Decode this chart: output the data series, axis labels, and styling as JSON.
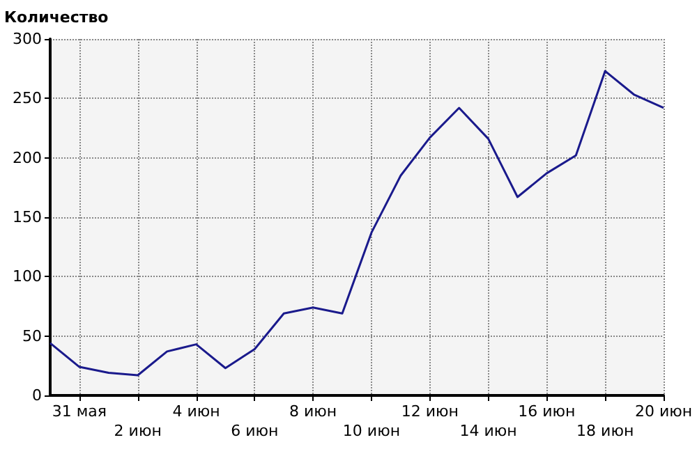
{
  "chart_data": {
    "type": "line",
    "ylabel": "Количество",
    "categories": [
      null,
      "31 мая",
      null,
      "2 июн",
      null,
      "4 июн",
      null,
      "6 июн",
      null,
      "8 июн",
      null,
      "10 июн",
      null,
      "12 июн",
      null,
      "14 июн",
      null,
      "16 июн",
      null,
      "18 июн",
      null,
      "20 июн"
    ],
    "series": [
      {
        "color": "#1a1a8c",
        "values": [
          44,
          24,
          19,
          17,
          37,
          43,
          23,
          39,
          69,
          74,
          69,
          137,
          185,
          217,
          242,
          216,
          167,
          187,
          202,
          273,
          253,
          242
        ]
      }
    ],
    "ylim": [
      0,
      300
    ],
    "yticks": [
      0,
      50,
      100,
      150,
      200,
      250,
      300
    ],
    "grid": true,
    "marker": "none",
    "line_style": "solid"
  }
}
